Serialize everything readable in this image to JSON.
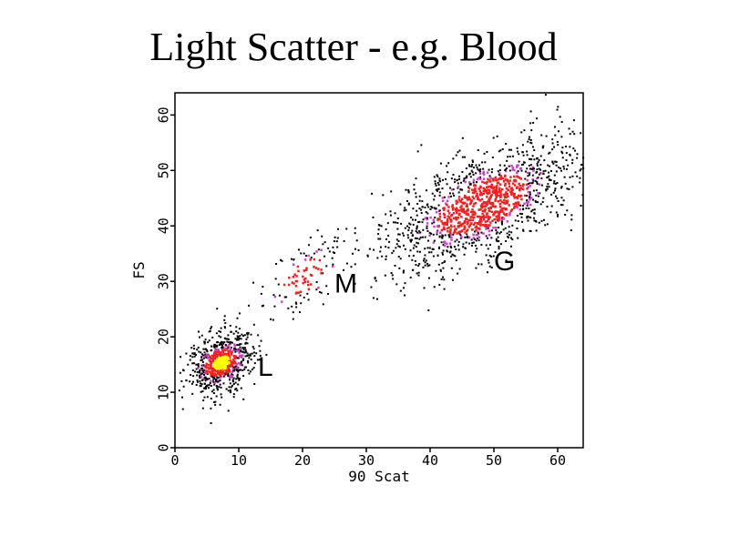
{
  "slide": {
    "title": "Light Scatter - e.g. Blood"
  },
  "chart_data": {
    "type": "scatter",
    "xlabel": "90 Scat",
    "ylabel": "FS",
    "xlim": [
      0,
      64
    ],
    "ylim": [
      0,
      64
    ],
    "x_ticks": [
      0,
      10,
      20,
      30,
      40,
      50,
      60
    ],
    "y_ticks": [
      0,
      10,
      20,
      30,
      40,
      50,
      60
    ],
    "x_tick_labels": [
      "0",
      "10",
      "20",
      "30",
      "40",
      "50",
      "60"
    ],
    "y_tick_labels": [
      "0",
      "10",
      "20",
      "30",
      "40",
      "50",
      "60"
    ],
    "grid": false,
    "density_colors": {
      "low": "#000000",
      "medium": "#cc44cc",
      "high": "#ee2222",
      "peak": "#ffff00"
    },
    "populations": [
      {
        "label": "L",
        "center": [
          7,
          15.5
        ],
        "spread": [
          2.6,
          2.6
        ],
        "label_pos": [
          13,
          13
        ]
      },
      {
        "label": "M",
        "center": [
          20,
          31
        ],
        "spread": [
          3.5,
          3
        ],
        "label_pos": [
          25,
          28
        ]
      },
      {
        "label": "G",
        "center": [
          48,
          44
        ],
        "spread": [
          7.5,
          4.5
        ],
        "label_pos": [
          50,
          32
        ]
      }
    ]
  }
}
